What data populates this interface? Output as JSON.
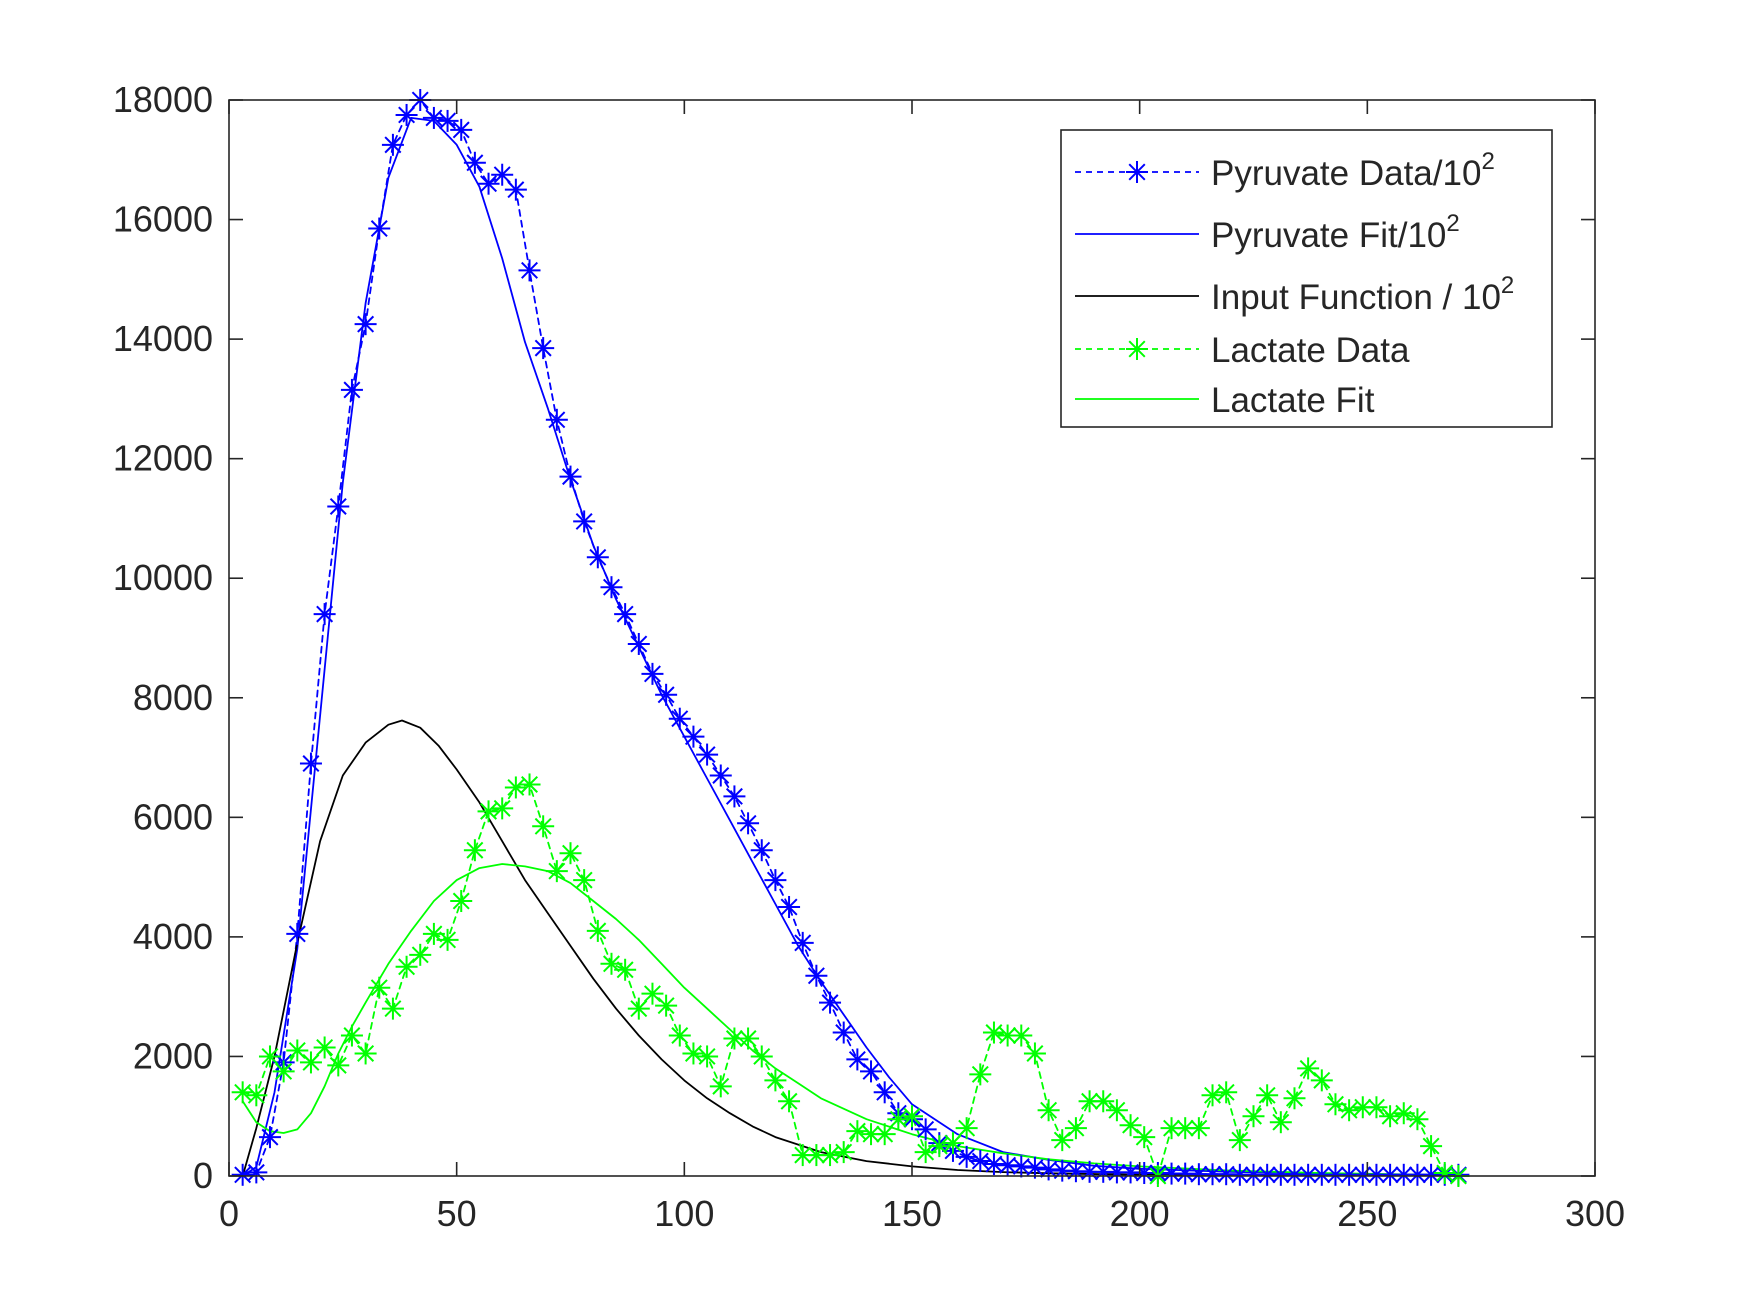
{
  "chart_data": {
    "type": "line",
    "title": "",
    "xlabel": "",
    "ylabel": "",
    "xlim": [
      0,
      300
    ],
    "ylim": [
      0,
      18000
    ],
    "x_ticks": [
      0,
      50,
      100,
      150,
      200,
      250,
      300
    ],
    "y_ticks": [
      0,
      2000,
      4000,
      6000,
      8000,
      10000,
      12000,
      14000,
      16000,
      18000
    ],
    "x_tick_labels": [
      "0",
      "50",
      "100",
      "150",
      "200",
      "250",
      "300"
    ],
    "y_tick_labels": [
      "0",
      "2000",
      "4000",
      "6000",
      "8000",
      "10000",
      "12000",
      "14000",
      "16000",
      "18000"
    ],
    "grid": false,
    "legend_position": "top-right",
    "series": [
      {
        "name": "Pyruvate Data/10",
        "name_superscript": "2",
        "color": "#0000ff",
        "line_style": "dashed",
        "marker": "asterisk",
        "x": [
          3,
          6,
          9,
          12,
          15,
          18,
          21,
          24,
          27,
          30,
          33,
          36,
          39,
          42,
          45,
          48,
          51,
          54,
          57,
          60,
          63,
          66,
          69,
          72,
          75,
          78,
          81,
          84,
          87,
          90,
          93,
          96,
          99,
          102,
          105,
          108,
          111,
          114,
          117,
          120,
          123,
          126,
          129,
          132,
          135,
          138,
          141,
          144,
          147,
          150,
          153,
          156,
          159,
          162,
          165,
          168,
          171,
          174,
          177,
          180,
          183,
          186,
          189,
          192,
          195,
          198,
          201,
          204,
          207,
          210,
          213,
          216,
          219,
          222,
          225,
          228,
          231,
          234,
          237,
          240,
          243,
          246,
          249,
          252,
          255,
          258,
          261,
          264,
          267,
          270
        ],
        "y": [
          20,
          60,
          650,
          1900,
          4050,
          6900,
          9400,
          11200,
          13150,
          14250,
          15850,
          17250,
          17750,
          18000,
          17700,
          17650,
          17500,
          16950,
          16600,
          16750,
          16500,
          15150,
          13850,
          12650,
          11700,
          10950,
          10350,
          9850,
          9400,
          8900,
          8400,
          8050,
          7650,
          7350,
          7050,
          6700,
          6350,
          5900,
          5450,
          4950,
          4500,
          3900,
          3350,
          2900,
          2400,
          1950,
          1750,
          1400,
          1050,
          950,
          780,
          550,
          420,
          320,
          250,
          200,
          180,
          160,
          140,
          110,
          90,
          80,
          70,
          70,
          60,
          60,
          50,
          50,
          40,
          40,
          30,
          30,
          30,
          20,
          20,
          20,
          20,
          20,
          20,
          20,
          20,
          20,
          20,
          20,
          20,
          20,
          20,
          20,
          20,
          20
        ]
      },
      {
        "name": "Pyruvate Fit/10",
        "name_superscript": "2",
        "color": "#0000ff",
        "line_style": "solid",
        "marker": "none",
        "x": [
          3,
          6,
          10,
          15,
          20,
          25,
          30,
          35,
          40,
          45,
          50,
          55,
          60,
          65,
          70,
          75,
          80,
          85,
          90,
          95,
          100,
          105,
          110,
          115,
          120,
          125,
          130,
          135,
          140,
          145,
          150,
          160,
          170,
          180,
          190,
          200,
          220,
          240,
          260,
          270
        ],
        "y": [
          0,
          150,
          1400,
          3800,
          7700,
          11600,
          14600,
          16700,
          17700,
          17650,
          17250,
          16550,
          15350,
          13950,
          12850,
          11650,
          10550,
          9650,
          8850,
          8050,
          7350,
          6650,
          5950,
          5250,
          4550,
          3850,
          3250,
          2700,
          2150,
          1650,
          1200,
          700,
          400,
          270,
          170,
          120,
          70,
          40,
          20,
          15
        ]
      },
      {
        "name": "Input Function / 10",
        "name_superscript": "2",
        "color": "#000000",
        "line_style": "solid",
        "marker": "none",
        "x": [
          3,
          6,
          10,
          15,
          20,
          25,
          30,
          35,
          38,
          42,
          46,
          50,
          55,
          60,
          65,
          70,
          75,
          80,
          85,
          90,
          95,
          100,
          105,
          110,
          115,
          120,
          130,
          140,
          150,
          160,
          170,
          180,
          200,
          220,
          240,
          260,
          270
        ],
        "y": [
          0,
          800,
          2000,
          3900,
          5600,
          6700,
          7250,
          7550,
          7620,
          7500,
          7200,
          6800,
          6250,
          5600,
          4950,
          4400,
          3850,
          3300,
          2800,
          2350,
          1950,
          1600,
          1300,
          1050,
          830,
          650,
          400,
          250,
          160,
          100,
          65,
          45,
          20,
          10,
          5,
          3,
          2
        ]
      },
      {
        "name": "Lactate Data",
        "color": "#00ff00",
        "line_style": "dashed",
        "marker": "asterisk",
        "x": [
          3,
          6,
          9,
          12,
          15,
          18,
          21,
          24,
          27,
          30,
          33,
          36,
          39,
          42,
          45,
          48,
          51,
          54,
          57,
          60,
          63,
          66,
          69,
          72,
          75,
          78,
          81,
          84,
          87,
          90,
          93,
          96,
          99,
          102,
          105,
          108,
          111,
          114,
          117,
          120,
          123,
          126,
          129,
          132,
          135,
          138,
          141,
          144,
          147,
          150,
          153,
          156,
          159,
          162,
          165,
          168,
          171,
          174,
          177,
          180,
          183,
          186,
          189,
          192,
          195,
          198,
          201,
          204,
          207,
          210,
          213,
          216,
          219,
          222,
          225,
          228,
          231,
          234,
          237,
          240,
          243,
          246,
          249,
          252,
          255,
          258,
          261,
          264,
          267,
          270
        ],
        "y": [
          1400,
          1350,
          2000,
          1750,
          2100,
          1900,
          2150,
          1850,
          2350,
          2050,
          3150,
          2800,
          3500,
          3700,
          4050,
          3950,
          4600,
          5450,
          6100,
          6150,
          6500,
          6550,
          5850,
          5100,
          5400,
          4950,
          4100,
          3550,
          3450,
          2800,
          3050,
          2850,
          2350,
          2050,
          2000,
          1500,
          2300,
          2300,
          2000,
          1600,
          1250,
          350,
          350,
          350,
          400,
          750,
          700,
          700,
          950,
          1000,
          400,
          500,
          550,
          800,
          1700,
          2400,
          2350,
          2350,
          2050,
          1100,
          600,
          800,
          1250,
          1250,
          1100,
          850,
          650,
          0,
          800,
          800,
          800,
          1350,
          1400,
          600,
          1000,
          1350,
          900,
          1300,
          1800,
          1600,
          1200,
          1100,
          1150,
          1150,
          1000,
          1050,
          950,
          500,
          50,
          0
        ]
      },
      {
        "name": "Lactate Fit",
        "color": "#00ff00",
        "line_style": "solid",
        "marker": "none",
        "x": [
          3,
          6,
          9,
          12,
          15,
          18,
          21,
          24,
          27,
          30,
          35,
          40,
          45,
          50,
          55,
          60,
          65,
          70,
          75,
          80,
          85,
          90,
          95,
          100,
          105,
          110,
          115,
          120,
          125,
          130,
          140,
          150,
          160,
          170,
          180,
          190,
          200,
          220,
          240,
          260,
          270
        ],
        "y": [
          1250,
          900,
          750,
          720,
          780,
          1050,
          1500,
          2050,
          2500,
          2900,
          3550,
          4100,
          4600,
          4950,
          5150,
          5220,
          5180,
          5100,
          4900,
          4600,
          4300,
          3950,
          3550,
          3150,
          2800,
          2450,
          2100,
          1800,
          1550,
          1300,
          950,
          700,
          500,
          380,
          280,
          210,
          160,
          90,
          50,
          25,
          15
        ]
      }
    ]
  }
}
